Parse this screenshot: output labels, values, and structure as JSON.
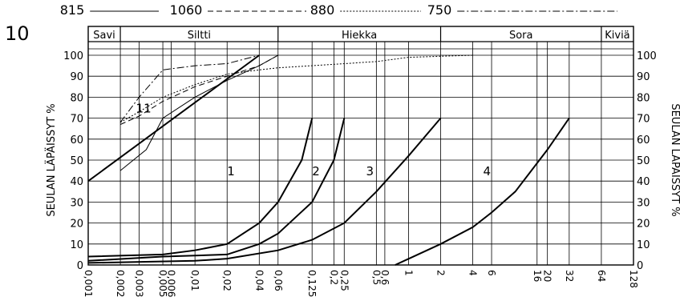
{
  "figure_number": "10",
  "legend": [
    {
      "label": "815",
      "dash": "solid"
    },
    {
      "label": "1060",
      "dash": "dashed"
    },
    {
      "label": "880",
      "dash": "dotted"
    },
    {
      "label": "750",
      "dash": "dashdot"
    }
  ],
  "soil_classes": [
    "Savi",
    "Siltti",
    "Hiekka",
    "Sora",
    "Kiviä"
  ],
  "colors": {
    "line": "#000000",
    "background": "#ffffff"
  },
  "chart_data": {
    "type": "line",
    "xscale": "log",
    "xlabel": "",
    "ylabel": "SEULAN LÄPÄISSYT %",
    "ylim": [
      0,
      100
    ],
    "x_ticks": [
      "0,001",
      "0,002",
      "0,003",
      "0,005",
      "0,006",
      "0,01",
      "0,02",
      "0,04",
      "0,06",
      "0,125",
      "0,2",
      "0,25",
      "0,5",
      "0,6",
      "1",
      "2",
      "4",
      "6",
      "16",
      "20",
      "32",
      "64",
      "128"
    ],
    "y_ticks": [
      "0",
      "10",
      "20",
      "30",
      "40",
      "50",
      "60",
      "70",
      "80",
      "90",
      "100"
    ],
    "zone_labels": [
      "1",
      "2",
      "3",
      "4",
      "11"
    ],
    "series": [
      {
        "dash": "solid",
        "x": [
          0.001,
          0.04
        ],
        "y": [
          40,
          100
        ]
      },
      {
        "dash": "solid",
        "x": [
          0.002,
          0.0035,
          0.005,
          0.01,
          0.02,
          0.04,
          0.06
        ],
        "y": [
          45,
          55,
          70,
          80,
          88,
          95,
          100
        ]
      },
      {
        "dash": "dashed",
        "x": [
          0.002,
          0.003,
          0.005,
          0.01,
          0.02,
          0.04,
          0.06
        ],
        "y": [
          67,
          71,
          78,
          85,
          90,
          95,
          100
        ]
      },
      {
        "dash": "dotted",
        "x": [
          0.002,
          0.003,
          0.005,
          0.01,
          0.02,
          0.04,
          0.06,
          0.125,
          0.25,
          0.5,
          1,
          2,
          4
        ],
        "y": [
          68,
          73,
          80,
          86,
          91,
          93,
          94,
          95,
          96,
          97,
          99,
          99.5,
          100
        ]
      },
      {
        "dash": "dashdot",
        "x": [
          0.002,
          0.003,
          0.005,
          0.01,
          0.02,
          0.04
        ],
        "y": [
          68,
          80,
          93,
          95,
          96,
          100
        ]
      },
      {
        "dash": "solid",
        "x": [
          0.001,
          0.005,
          0.01,
          0.02,
          0.04,
          0.06,
          0.1,
          0.125
        ],
        "y": [
          4,
          5,
          7,
          10,
          20,
          30,
          50,
          70
        ]
      },
      {
        "dash": "solid",
        "x": [
          0.001,
          0.005,
          0.01,
          0.02,
          0.04,
          0.06,
          0.125,
          0.2,
          0.25
        ],
        "y": [
          2,
          4,
          4.5,
          5,
          10,
          15,
          30,
          50,
          70
        ]
      },
      {
        "dash": "solid",
        "x": [
          0.001,
          0.01,
          0.02,
          0.06,
          0.125,
          0.25,
          0.5,
          1,
          2
        ],
        "y": [
          1,
          2,
          3,
          7,
          12,
          20,
          35,
          52,
          70
        ]
      },
      {
        "dash": "solid",
        "x": [
          0.75,
          2,
          4,
          6,
          10,
          20,
          32
        ],
        "y": [
          0,
          10,
          18,
          25,
          35,
          55,
          70
        ]
      }
    ]
  }
}
